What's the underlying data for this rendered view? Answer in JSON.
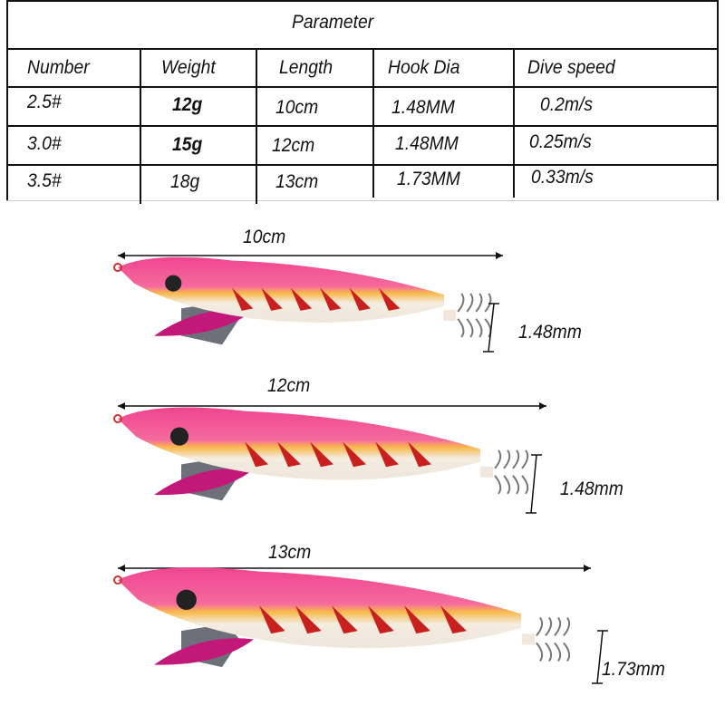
{
  "table": {
    "title": "Parameter",
    "headers": [
      "Number",
      "Weight",
      "Length",
      "Hook Dia",
      "Dive speed"
    ],
    "rows": [
      [
        "2.5#",
        "12g",
        "10cm",
        "1.48MM",
        "0.2m/s"
      ],
      [
        "3.0#",
        "15g",
        "12cm",
        "1.48MM",
        "0.25m/s"
      ],
      [
        "3.5#",
        "18g",
        "13cm",
        "1.73MM",
        "0.33m/s"
      ]
    ]
  },
  "lures": [
    {
      "length_label": "10cm",
      "hook_label": "1.48mm"
    },
    {
      "length_label": "12cm",
      "hook_label": "1.48mm"
    },
    {
      "length_label": "13cm",
      "hook_label": "1.73mm"
    }
  ],
  "colors": {
    "body": "#f0458f",
    "stripe": "#c8201e",
    "belly": "#f4ece0",
    "band": "#f7b94a"
  }
}
